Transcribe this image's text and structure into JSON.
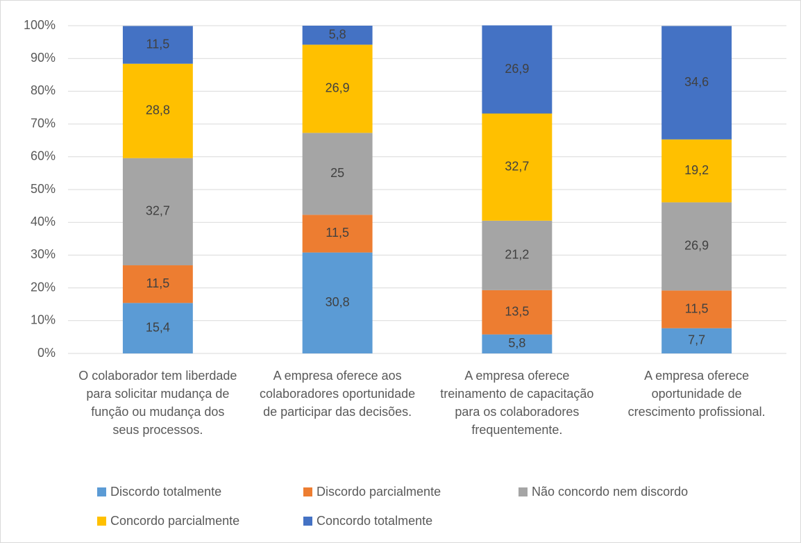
{
  "chart_data": {
    "type": "stacked_bar_100",
    "categories": [
      "O colaborador tem liberdade para solicitar mudança de função ou mudança dos seus processos.",
      "A empresa oferece aos colaboradores oportunidade de participar das decisões.",
      "A empresa oferece treinamento de capacitação para os colaboradores frequentemente.",
      "A empresa oferece oportunidade de crescimento profissional."
    ],
    "series": [
      {
        "name": "Discordo totalmente",
        "color": "#5b9bd5",
        "values": [
          15.4,
          30.8,
          5.8,
          7.7
        ],
        "value_labels": [
          "15,4",
          "30,8",
          "5,8",
          "7,7"
        ]
      },
      {
        "name": "Discordo parcialmente",
        "color": "#ed7d31",
        "values": [
          11.5,
          11.5,
          13.5,
          11.5
        ],
        "value_labels": [
          "11,5",
          "11,5",
          "13,5",
          "11,5"
        ]
      },
      {
        "name": "Não concordo nem discordo",
        "color": "#a5a5a5",
        "values": [
          32.7,
          25,
          21.2,
          26.9
        ],
        "value_labels": [
          "32,7",
          "25",
          "21,2",
          "26,9"
        ]
      },
      {
        "name": "Concordo parcialmente",
        "color": "#ffc000",
        "values": [
          28.8,
          26.9,
          32.7,
          19.2
        ],
        "value_labels": [
          "28,8",
          "26,9",
          "32,7",
          "19,2"
        ]
      },
      {
        "name": "Concordo totalmente",
        "color": "#4472c4",
        "values": [
          11.5,
          5.8,
          26.9,
          34.6
        ],
        "value_labels": [
          "11,5",
          "5,8",
          "26,9",
          "34,6"
        ]
      }
    ],
    "ylim": [
      0,
      100
    ],
    "yticks": [
      {
        "value": 0,
        "label": "0%"
      },
      {
        "value": 10,
        "label": "10%"
      },
      {
        "value": 20,
        "label": "20%"
      },
      {
        "value": 30,
        "label": "30%"
      },
      {
        "value": 40,
        "label": "40%"
      },
      {
        "value": 50,
        "label": "50%"
      },
      {
        "value": 60,
        "label": "60%"
      },
      {
        "value": 70,
        "label": "70%"
      },
      {
        "value": 80,
        "label": "80%"
      },
      {
        "value": 90,
        "label": "90%"
      },
      {
        "value": 100,
        "label": "100%"
      }
    ],
    "grid": true,
    "legend": "bottom"
  }
}
